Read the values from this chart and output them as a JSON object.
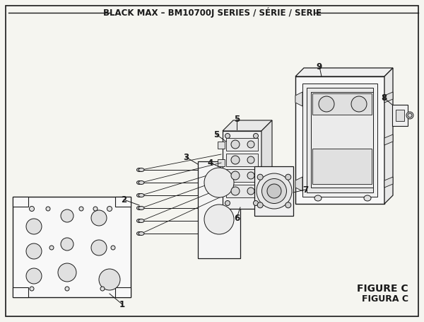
{
  "title": "BLACK MAX – BM10700J SERIES / SÉRIE / SERIE",
  "figure_label": "FIGURE C",
  "figura_label": "FIGURA C",
  "bg_color": "#f5f5f0",
  "line_color": "#1a1a1a",
  "title_fontsize": 8.5,
  "fig_label_fontsize": 10
}
